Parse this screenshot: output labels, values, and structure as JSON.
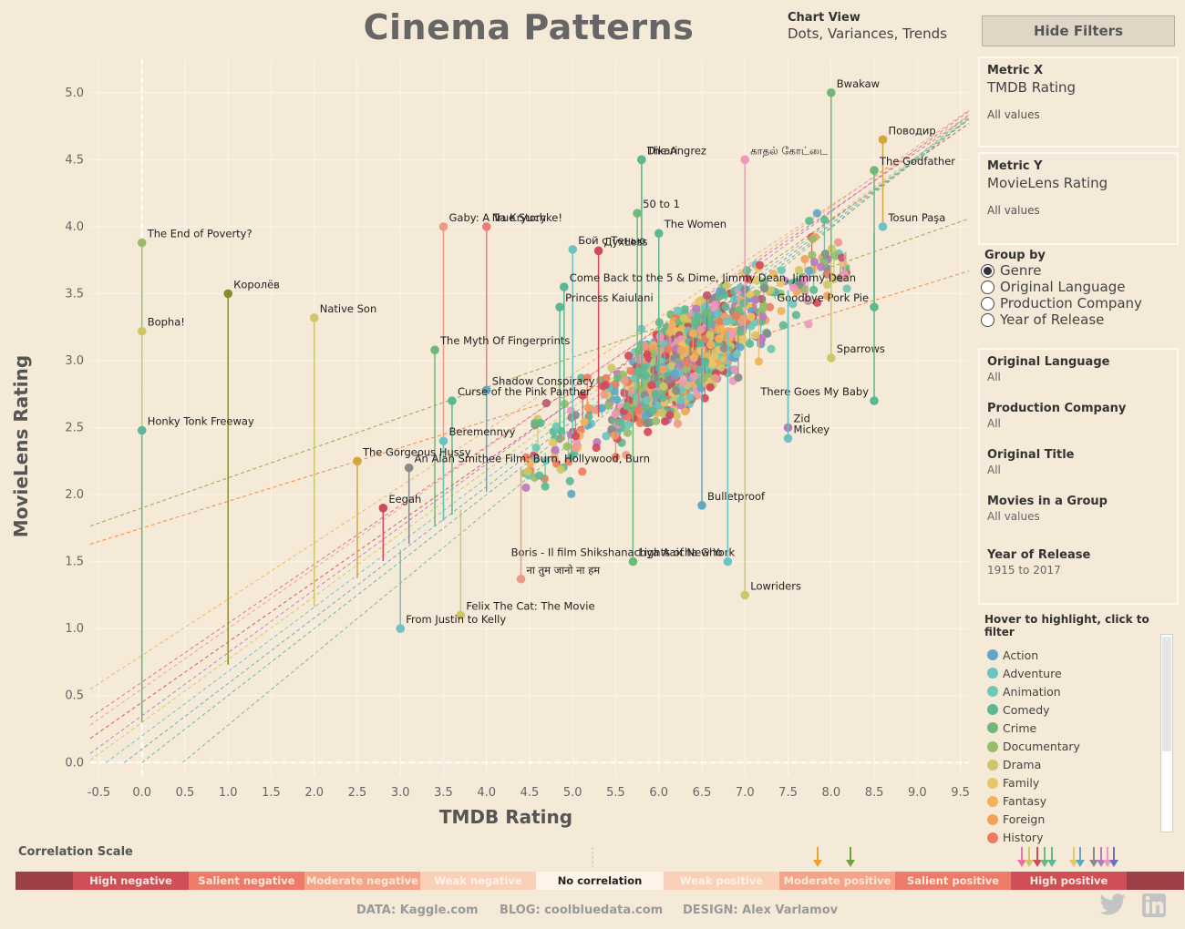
{
  "title": "Cinema Patterns",
  "chart_view": {
    "label": "Chart View",
    "value": "Dots, Variances, Trends"
  },
  "hide_filters_label": "Hide Filters",
  "metric_x": {
    "label": "Metric X",
    "value": "TMDB Rating",
    "sub": "All values"
  },
  "metric_y": {
    "label": "Metric Y",
    "value": "MovieLens Rating",
    "sub": "All values"
  },
  "group_by": {
    "label": "Group by",
    "options": [
      "Genre",
      "Original Language",
      "Production Company",
      "Year of Release"
    ],
    "selected": 0
  },
  "filters": [
    {
      "label": "Original Language",
      "value": "All"
    },
    {
      "label": "Production Company",
      "value": "All"
    },
    {
      "label": "Original Title",
      "value": "All"
    },
    {
      "label": "Movies in a Group",
      "value": "All values"
    },
    {
      "label": "Year of Release",
      "value": "1915 to 2017"
    }
  ],
  "legend": {
    "hint": "Hover to highlight, click to filter",
    "items": [
      {
        "name": "Action",
        "color": "#5fa7c4"
      },
      {
        "name": "Adventure",
        "color": "#6cc3c1"
      },
      {
        "name": "Animation",
        "color": "#6dc8b4"
      },
      {
        "name": "Comedy",
        "color": "#5cb892"
      },
      {
        "name": "Crime",
        "color": "#6fb87a"
      },
      {
        "name": "Documentary",
        "color": "#98bd6a"
      },
      {
        "name": "Drama",
        "color": "#cdc766"
      },
      {
        "name": "Family",
        "color": "#e9c565"
      },
      {
        "name": "Fantasy",
        "color": "#f1b25a"
      },
      {
        "name": "Foreign",
        "color": "#f0a25c"
      },
      {
        "name": "History",
        "color": "#ee7b5c"
      }
    ]
  },
  "chart_data": {
    "type": "scatter",
    "xlabel": "TMDB Rating",
    "ylabel": "MovieLens Rating",
    "xlim": [
      -0.6,
      9.6
    ],
    "ylim": [
      -0.1,
      5.25
    ],
    "xticks": [
      "-0.5",
      "0.0",
      "0.5",
      "1.0",
      "1.5",
      "2.0",
      "2.5",
      "3.0",
      "3.5",
      "4.0",
      "4.5",
      "5.0",
      "5.5",
      "6.0",
      "6.5",
      "7.0",
      "7.5",
      "8.0",
      "8.5",
      "9.0",
      "9.5"
    ],
    "yticks": [
      "0.0",
      "0.5",
      "1.0",
      "1.5",
      "2.0",
      "2.5",
      "3.0",
      "3.5",
      "4.0",
      "4.5",
      "5.0"
    ],
    "grid": true,
    "labeled_points": [
      {
        "label": "Bwakaw",
        "x": 8.0,
        "y": 5.0,
        "color": "#6fb87a"
      },
      {
        "label": "Поводир",
        "x": 8.6,
        "y": 4.65,
        "color": "#d4a640"
      },
      {
        "label": "The Angrez",
        "x": 5.8,
        "y": 4.5,
        "color": "#5cb892"
      },
      {
        "label": "காதல் கோட்டை",
        "x": 7.0,
        "y": 4.5,
        "color": "#ef97bd"
      },
      {
        "label": "Dikari",
        "x": 5.8,
        "y": 4.5,
        "color": "#5cb892"
      },
      {
        "label": "The Godfather",
        "x": 8.5,
        "y": 4.42,
        "color": "#6fb87a"
      },
      {
        "label": "Na Kryuchke!",
        "x": 4.0,
        "y": 4.0,
        "color": "#ee7b7a"
      },
      {
        "label": "50 to 1",
        "x": 5.75,
        "y": 4.1,
        "color": "#6fb87a"
      },
      {
        "label": "Gaby: A True Story",
        "x": 3.5,
        "y": 4.0,
        "color": "#ee9a87"
      },
      {
        "label": "Tosun Paşa",
        "x": 8.6,
        "y": 4.0,
        "color": "#6cc3c1"
      },
      {
        "label": "The Women",
        "x": 6.0,
        "y": 3.95,
        "color": "#5cb892"
      },
      {
        "label": "The End of Poverty?",
        "x": 0.0,
        "y": 3.88,
        "color": "#98bd6a"
      },
      {
        "label": "Бой с Тенью",
        "x": 5.0,
        "y": 3.83,
        "color": "#6cc3c1"
      },
      {
        "label": "ДухLess",
        "x": 5.3,
        "y": 3.82,
        "color": "#d24a5a"
      },
      {
        "label": "Come Back to the 5 & Dime, Jimmy Dean, Jimmy Dean",
        "x": 4.9,
        "y": 3.55,
        "color": "#5cb892"
      },
      {
        "label": "Princess Kaiulani",
        "x": 4.85,
        "y": 3.4,
        "color": "#5cb892"
      },
      {
        "label": "Goodbye Pork Pie",
        "x": 8.5,
        "y": 3.4,
        "color": "#5cb892"
      },
      {
        "label": "Bopha!",
        "x": 0.0,
        "y": 3.22,
        "color": "#cdc766"
      },
      {
        "label": "Королёв",
        "x": 1.0,
        "y": 3.5,
        "color": "#8c8a30"
      },
      {
        "label": "Native Son",
        "x": 2.0,
        "y": 3.32,
        "color": "#cdc766"
      },
      {
        "label": "The Myth Of Fingerprints",
        "x": 3.4,
        "y": 3.08,
        "color": "#6fb87a"
      },
      {
        "label": "Sparrows",
        "x": 8.0,
        "y": 3.02,
        "color": "#cdc766"
      },
      {
        "label": "Shadow Conspiracy",
        "x": 4.0,
        "y": 2.78,
        "color": "#5fa7c4"
      },
      {
        "label": "Curse of the Pink Panther",
        "x": 3.6,
        "y": 2.7,
        "color": "#5cb892"
      },
      {
        "label": "There Goes My Baby",
        "x": 8.5,
        "y": 2.7,
        "color": "#5cb892"
      },
      {
        "label": "Honky Tonk Freeway",
        "x": 0.0,
        "y": 2.48,
        "color": "#5cb892"
      },
      {
        "label": "Zid",
        "x": 7.5,
        "y": 2.5,
        "color": "#b87abf"
      },
      {
        "label": "Beremennyy",
        "x": 3.5,
        "y": 2.4,
        "color": "#6cc3c1"
      },
      {
        "label": "Mickey",
        "x": 7.5,
        "y": 2.42,
        "color": "#6cc3c1"
      },
      {
        "label": "The Gorgeous Hussy",
        "x": 2.5,
        "y": 2.25,
        "color": "#d4a640"
      },
      {
        "label": "An Alan Smithee Film: Burn, Hollywood, Burn",
        "x": 3.1,
        "y": 2.2,
        "color": "#8a8a8a"
      },
      {
        "label": "Eegah",
        "x": 2.8,
        "y": 1.9,
        "color": "#d24a5a"
      },
      {
        "label": "Bulletproof",
        "x": 6.5,
        "y": 1.92,
        "color": "#5fa7c4"
      },
      {
        "label": "Lights of New York",
        "x": 5.7,
        "y": 1.5,
        "color": "#6fb87a"
      },
      {
        "label": "Boris - Il film Shikshanachya Aaicha Gho",
        "x": 6.8,
        "y": 1.5,
        "color": "#6cc3c1"
      },
      {
        "label": "ना तुम जानो ना हम",
        "x": 4.4,
        "y": 1.37,
        "color": "#ee9a87"
      },
      {
        "label": "Lowriders",
        "x": 7.0,
        "y": 1.25,
        "color": "#cdc766"
      },
      {
        "label": "Felix The Cat: The Movie",
        "x": 3.7,
        "y": 1.1,
        "color": "#cdc766"
      },
      {
        "label": "From Justin to Kelly",
        "x": 3.0,
        "y": 1.0,
        "color": "#6cc3c1"
      }
    ]
  },
  "correlation": {
    "title": "Correlation Scale",
    "segments": [
      {
        "label": "",
        "color": "#9c3f47"
      },
      {
        "label": "High negative",
        "color": "#d04f56"
      },
      {
        "label": "Salient negative",
        "color": "#ee7b67"
      },
      {
        "label": "Moderate negative",
        "color": "#f6a488"
      },
      {
        "label": "Weak negative",
        "color": "#fbd0b9"
      },
      {
        "label": "No correlation",
        "color": "#fdf3e8"
      },
      {
        "label": "Weak positive",
        "color": "#fbd0b9"
      },
      {
        "label": "Moderate positive",
        "color": "#f6a488"
      },
      {
        "label": "Salient positive",
        "color": "#ee7b67"
      },
      {
        "label": "High positive",
        "color": "#d04f56"
      },
      {
        "label": "",
        "color": "#9c3f47"
      }
    ],
    "arrow_colors": [
      "#f0a030",
      "#70a040",
      "#ef6fa8",
      "#cdc766",
      "#d24a5a",
      "#6fb87a",
      "#5cb892",
      "#e9c565",
      "#5fa7c4",
      "#8a8a8a",
      "#b87abf",
      "#ef97bd",
      "#7070c0"
    ]
  },
  "footer": {
    "data": "DATA: Kaggle.com",
    "blog": "BLOG: coolbluedata.com",
    "design": "DESIGN: Alex Varlamov"
  },
  "social": [
    "twitter-icon",
    "linkedin-icon"
  ]
}
